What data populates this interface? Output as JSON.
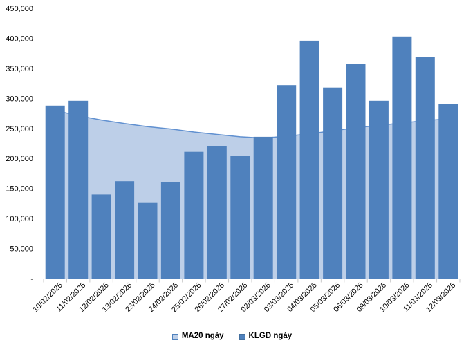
{
  "window": {
    "background": "#FFFFFF"
  },
  "chart_data": {
    "type": "bar",
    "title": "",
    "xlabel": "",
    "ylabel": "",
    "grid": false,
    "legend_position": "bottom",
    "categories": [
      "10/02/2026",
      "11/02/2026",
      "12/02/2026",
      "13/02/2026",
      "23/02/2026",
      "24/02/2026",
      "25/02/2026",
      "26/02/2026",
      "27/02/2026",
      "02/03/2026",
      "03/03/2026",
      "04/03/2026",
      "05/03/2026",
      "06/03/2026",
      "09/03/2026",
      "10/03/2026",
      "11/03/2026",
      "12/03/2026"
    ],
    "series": [
      {
        "name": "MA20 ngày",
        "type": "area",
        "fill": "#BDCFE8",
        "line_color": "#6090D0",
        "values": [
          280000,
          271000,
          264000,
          258000,
          253000,
          249000,
          244000,
          240000,
          236000,
          234000,
          237000,
          241000,
          246000,
          251000,
          255000,
          259000,
          263000,
          266000
        ]
      },
      {
        "name": "KLGD ngày",
        "type": "bar",
        "fill": "#4F81BD",
        "values": [
          288000,
          296000,
          140000,
          162000,
          127000,
          161000,
          211000,
          221000,
          204000,
          236000,
          322000,
          396000,
          318000,
          357000,
          296000,
          403000,
          369000,
          290000
        ]
      }
    ],
    "ylim": [
      0,
      450000
    ],
    "y_ticks": {
      "step": 50000,
      "labels": [
        "-",
        "50,000",
        "100,000",
        "150,000",
        "200,000",
        "250,000",
        "300,000",
        "350,000",
        "400,000",
        "450,000"
      ]
    },
    "axis_color": "#C8C8C8",
    "text_color": "#000000"
  },
  "legend": {
    "items": [
      {
        "label": "MA20 ngày"
      },
      {
        "label": "KLGD ngày"
      }
    ]
  }
}
